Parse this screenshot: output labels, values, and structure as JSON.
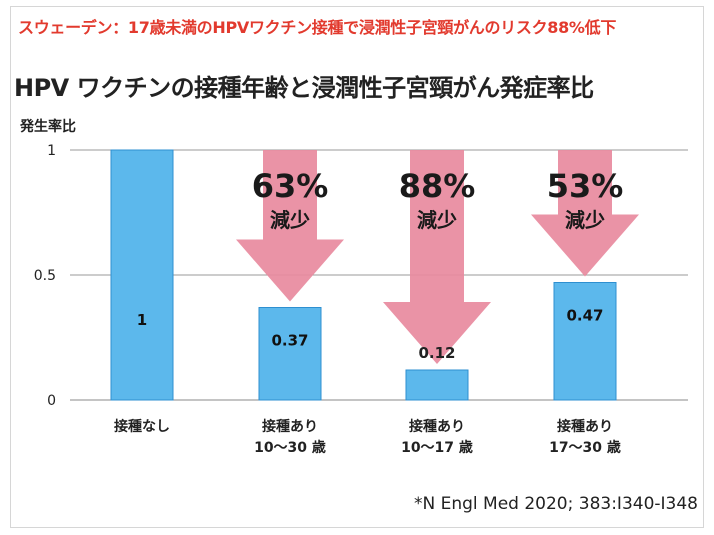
{
  "headline": "スウェーデン：17歳未満のHPVワクチン接種で浸潤性子宮頸がんのリスク88%低下",
  "source": "*N Engl Med 2020; 383:I340-I348",
  "colors": {
    "bar": "#5cb8ec",
    "bar_stroke": "#2e8fd0",
    "arrow": "#e88a9e",
    "headline": "#e23a2e"
  },
  "chart_data": {
    "type": "bar",
    "title": "HPV ワクチンの接種年齢と浸潤性子宮頸がん発症率比",
    "ylabel": "発生率比",
    "xlabel": "",
    "ylim": [
      0,
      1
    ],
    "yticks": [
      "0",
      "0.5",
      "1"
    ],
    "categories": [
      [
        "接種なし"
      ],
      [
        "接種あり",
        "10〜30 歳"
      ],
      [
        "接種あり",
        "10〜17 歳"
      ],
      [
        "接種あり",
        "17〜30 歳"
      ]
    ],
    "values": [
      1,
      0.37,
      0.12,
      0.47
    ],
    "data_labels": [
      "1",
      "0.37",
      "0.12",
      "0.47"
    ],
    "reductions": [
      null,
      {
        "percent": "63%",
        "label": "減少"
      },
      {
        "percent": "88%",
        "label": "減少"
      },
      {
        "percent": "53%",
        "label": "減少"
      }
    ],
    "grid": true
  }
}
